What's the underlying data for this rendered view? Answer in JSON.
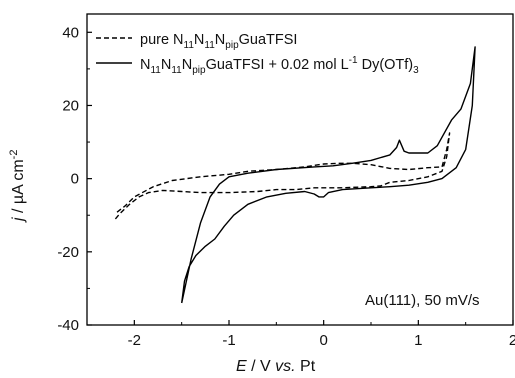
{
  "chart_data": {
    "type": "line",
    "xlabel": {
      "var": "E",
      "rest": " / V ",
      "vs": "vs.",
      "ref": " Pt"
    },
    "ylabel": {
      "var": "j",
      "unit": " / µA cm",
      "sup": "-2"
    },
    "xlim": [
      -2.5,
      2.0
    ],
    "ylim": [
      -40,
      45
    ],
    "x_ticks": [
      -2,
      -1,
      0,
      1,
      2
    ],
    "y_ticks": [
      -40,
      -20,
      0,
      20,
      40
    ],
    "tick_labels": {
      "x": [
        "-2",
        "-1",
        "0",
        "1",
        "2"
      ],
      "y": [
        "-40",
        "-20",
        "0",
        "20",
        "40"
      ]
    },
    "legend": {
      "position": "top-left",
      "entries": [
        {
          "style": "dashed",
          "text": "pure N11N11NpipGuaTFSI"
        },
        {
          "style": "solid",
          "text": "N11N11NpipGuaTFSI + 0.02 mol L-1 Dy(OTf)3"
        }
      ],
      "entry1_parts": {
        "a": "pure N",
        "s1": "11",
        "b": "N",
        "s2": "11",
        "c": "N",
        "s3": "pip",
        "d": "GuaTFSI"
      },
      "entry2_parts": {
        "a": "N",
        "s1": "11",
        "b": "N",
        "s2": "11",
        "c": "N",
        "s3": "pip",
        "d": "GuaTFSI + 0.02 mol L",
        "sup": "-1",
        "e": " Dy(OTf)",
        "s4": "3"
      }
    },
    "annotation": "Au(111), 50 mV/s",
    "series": [
      {
        "style": "dashed",
        "color": "#000000",
        "points": [
          [
            -2.2,
            -11.0
          ],
          [
            -2.15,
            -9.5
          ],
          [
            -2.05,
            -7.0
          ],
          [
            -1.95,
            -5.0
          ],
          [
            -1.85,
            -3.8
          ],
          [
            -1.7,
            -3.2
          ],
          [
            -1.5,
            -3.5
          ],
          [
            -1.3,
            -3.8
          ],
          [
            -1.0,
            -3.8
          ],
          [
            -0.7,
            -3.5
          ],
          [
            -0.5,
            -3.0
          ],
          [
            -0.3,
            -3.0
          ],
          [
            -0.1,
            -2.5
          ],
          [
            0.2,
            -2.5
          ],
          [
            0.5,
            -2.2
          ],
          [
            0.6,
            -2.0
          ],
          [
            0.7,
            -1.0
          ],
          [
            0.9,
            -0.5
          ],
          [
            1.1,
            0.5
          ],
          [
            1.25,
            2.0
          ],
          [
            1.3,
            6.0
          ],
          [
            1.33,
            12.5
          ],
          [
            1.3,
            8.0
          ],
          [
            1.25,
            3.2
          ],
          [
            1.1,
            3.0
          ],
          [
            0.9,
            2.5
          ],
          [
            0.7,
            2.8
          ],
          [
            0.5,
            3.8
          ],
          [
            0.3,
            4.2
          ],
          [
            0.15,
            4.2
          ],
          [
            0.0,
            4.0
          ],
          [
            -0.2,
            3.2
          ],
          [
            -0.5,
            2.5
          ],
          [
            -0.8,
            2.0
          ],
          [
            -1.0,
            1.2
          ],
          [
            -1.3,
            0.5
          ],
          [
            -1.6,
            -0.5
          ],
          [
            -1.8,
            -2.2
          ],
          [
            -2.0,
            -5.0
          ],
          [
            -2.1,
            -7.5
          ],
          [
            -2.2,
            -9.5
          ]
        ]
      },
      {
        "style": "solid",
        "color": "#000000",
        "points": [
          [
            -1.5,
            -34.0
          ],
          [
            -1.47,
            -28.0
          ],
          [
            -1.42,
            -24.0
          ],
          [
            -1.35,
            -21.0
          ],
          [
            -1.25,
            -18.5
          ],
          [
            -1.15,
            -16.5
          ],
          [
            -1.05,
            -13.0
          ],
          [
            -0.95,
            -10.0
          ],
          [
            -0.8,
            -7.0
          ],
          [
            -0.6,
            -5.0
          ],
          [
            -0.4,
            -4.0
          ],
          [
            -0.2,
            -3.5
          ],
          [
            -0.1,
            -4.2
          ],
          [
            -0.05,
            -5.0
          ],
          [
            0.0,
            -5.0
          ],
          [
            0.05,
            -3.8
          ],
          [
            0.2,
            -3.0
          ],
          [
            0.5,
            -2.5
          ],
          [
            0.7,
            -2.2
          ],
          [
            0.9,
            -1.8
          ],
          [
            1.1,
            -1.0
          ],
          [
            1.25,
            0.0
          ],
          [
            1.4,
            3.0
          ],
          [
            1.5,
            8.0
          ],
          [
            1.57,
            20.0
          ],
          [
            1.6,
            36.0
          ],
          [
            1.55,
            26.0
          ],
          [
            1.45,
            19.0
          ],
          [
            1.35,
            16.0
          ],
          [
            1.2,
            9.0
          ],
          [
            1.1,
            7.0
          ],
          [
            1.0,
            7.0
          ],
          [
            0.9,
            7.0
          ],
          [
            0.85,
            7.5
          ],
          [
            0.8,
            10.5
          ],
          [
            0.77,
            8.5
          ],
          [
            0.7,
            6.5
          ],
          [
            0.5,
            5.0
          ],
          [
            0.3,
            4.2
          ],
          [
            0.1,
            3.5
          ],
          [
            -0.1,
            3.2
          ],
          [
            -0.5,
            2.5
          ],
          [
            -0.8,
            1.5
          ],
          [
            -1.0,
            0.5
          ],
          [
            -1.1,
            -1.5
          ],
          [
            -1.2,
            -5.0
          ],
          [
            -1.3,
            -12.0
          ],
          [
            -1.4,
            -22.0
          ],
          [
            -1.5,
            -34.0
          ]
        ]
      }
    ]
  }
}
